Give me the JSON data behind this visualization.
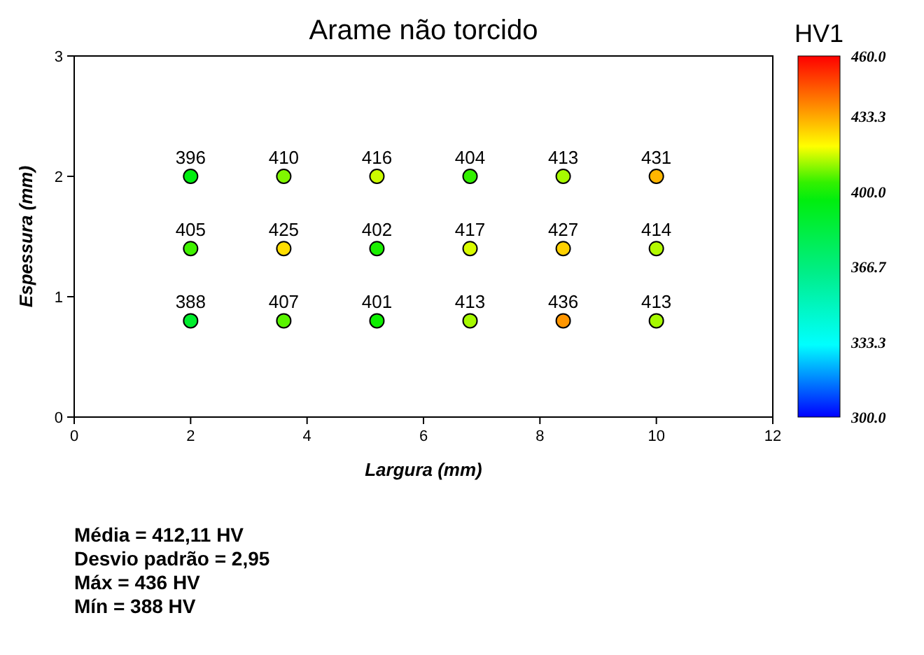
{
  "chart_data": {
    "type": "scatter",
    "title": "Arame não torcido",
    "xlabel": "Largura (mm)",
    "ylabel": "Espessura (mm)",
    "clabel": "HV1",
    "x": [
      2,
      3.6,
      5.2,
      6.8,
      8.4,
      10,
      2,
      3.6,
      5.2,
      6.8,
      8.4,
      10,
      2,
      3.6,
      5.2,
      6.8,
      8.4,
      10
    ],
    "values": [
      2,
      2,
      2,
      2,
      2,
      2,
      1.4,
      1.4,
      1.4,
      1.4,
      1.4,
      1.4,
      0.8,
      0.8,
      0.8,
      0.8,
      0.8,
      0.8
    ],
    "cvalues": [
      396,
      410,
      416,
      404,
      413,
      431,
      405,
      425,
      402,
      417,
      427,
      414,
      388,
      407,
      401,
      413,
      436,
      413
    ],
    "xlim": [
      0,
      12
    ],
    "xticks": [
      0,
      2,
      4,
      6,
      8,
      10,
      12
    ],
    "ylim": [
      0,
      3
    ],
    "yticks": [
      0,
      1,
      2,
      3
    ],
    "clim": [
      300,
      460
    ],
    "cticks": [
      {
        "value": 300,
        "label": "300.0"
      },
      {
        "value": 333.3,
        "label": "333.3"
      },
      {
        "value": 366.7,
        "label": "366.7"
      },
      {
        "value": 400,
        "label": "400.0"
      },
      {
        "value": 433.3,
        "label": "433.3"
      },
      {
        "value": 460,
        "label": "460.0"
      }
    ],
    "marker": "circle",
    "grid": false,
    "annotations": [
      {
        "text": "396",
        "x": 2,
        "y": 2
      },
      {
        "text": "410",
        "x": 3.6,
        "y": 2
      },
      {
        "text": "416",
        "x": 5.2,
        "y": 2
      },
      {
        "text": "404",
        "x": 6.8,
        "y": 2
      },
      {
        "text": "413",
        "x": 8.4,
        "y": 2
      },
      {
        "text": "431",
        "x": 10,
        "y": 2
      },
      {
        "text": "405",
        "x": 2,
        "y": 1.4
      },
      {
        "text": "425",
        "x": 3.6,
        "y": 1.4
      },
      {
        "text": "402",
        "x": 5.2,
        "y": 1.4
      },
      {
        "text": "417",
        "x": 6.8,
        "y": 1.4
      },
      {
        "text": "427",
        "x": 8.4,
        "y": 1.4
      },
      {
        "text": "414",
        "x": 10,
        "y": 1.4
      },
      {
        "text": "388",
        "x": 2,
        "y": 0.8
      },
      {
        "text": "407",
        "x": 3.6,
        "y": 0.8
      },
      {
        "text": "401",
        "x": 5.2,
        "y": 0.8
      },
      {
        "text": "413",
        "x": 6.8,
        "y": 0.8
      },
      {
        "text": "436",
        "x": 8.4,
        "y": 0.8
      },
      {
        "text": "413",
        "x": 10,
        "y": 0.8
      },
      "Média = 412,11 HV",
      "Desvio padrão = 2,95",
      "Máx = 436 HV",
      "Mín = 388 HV"
    ]
  }
}
